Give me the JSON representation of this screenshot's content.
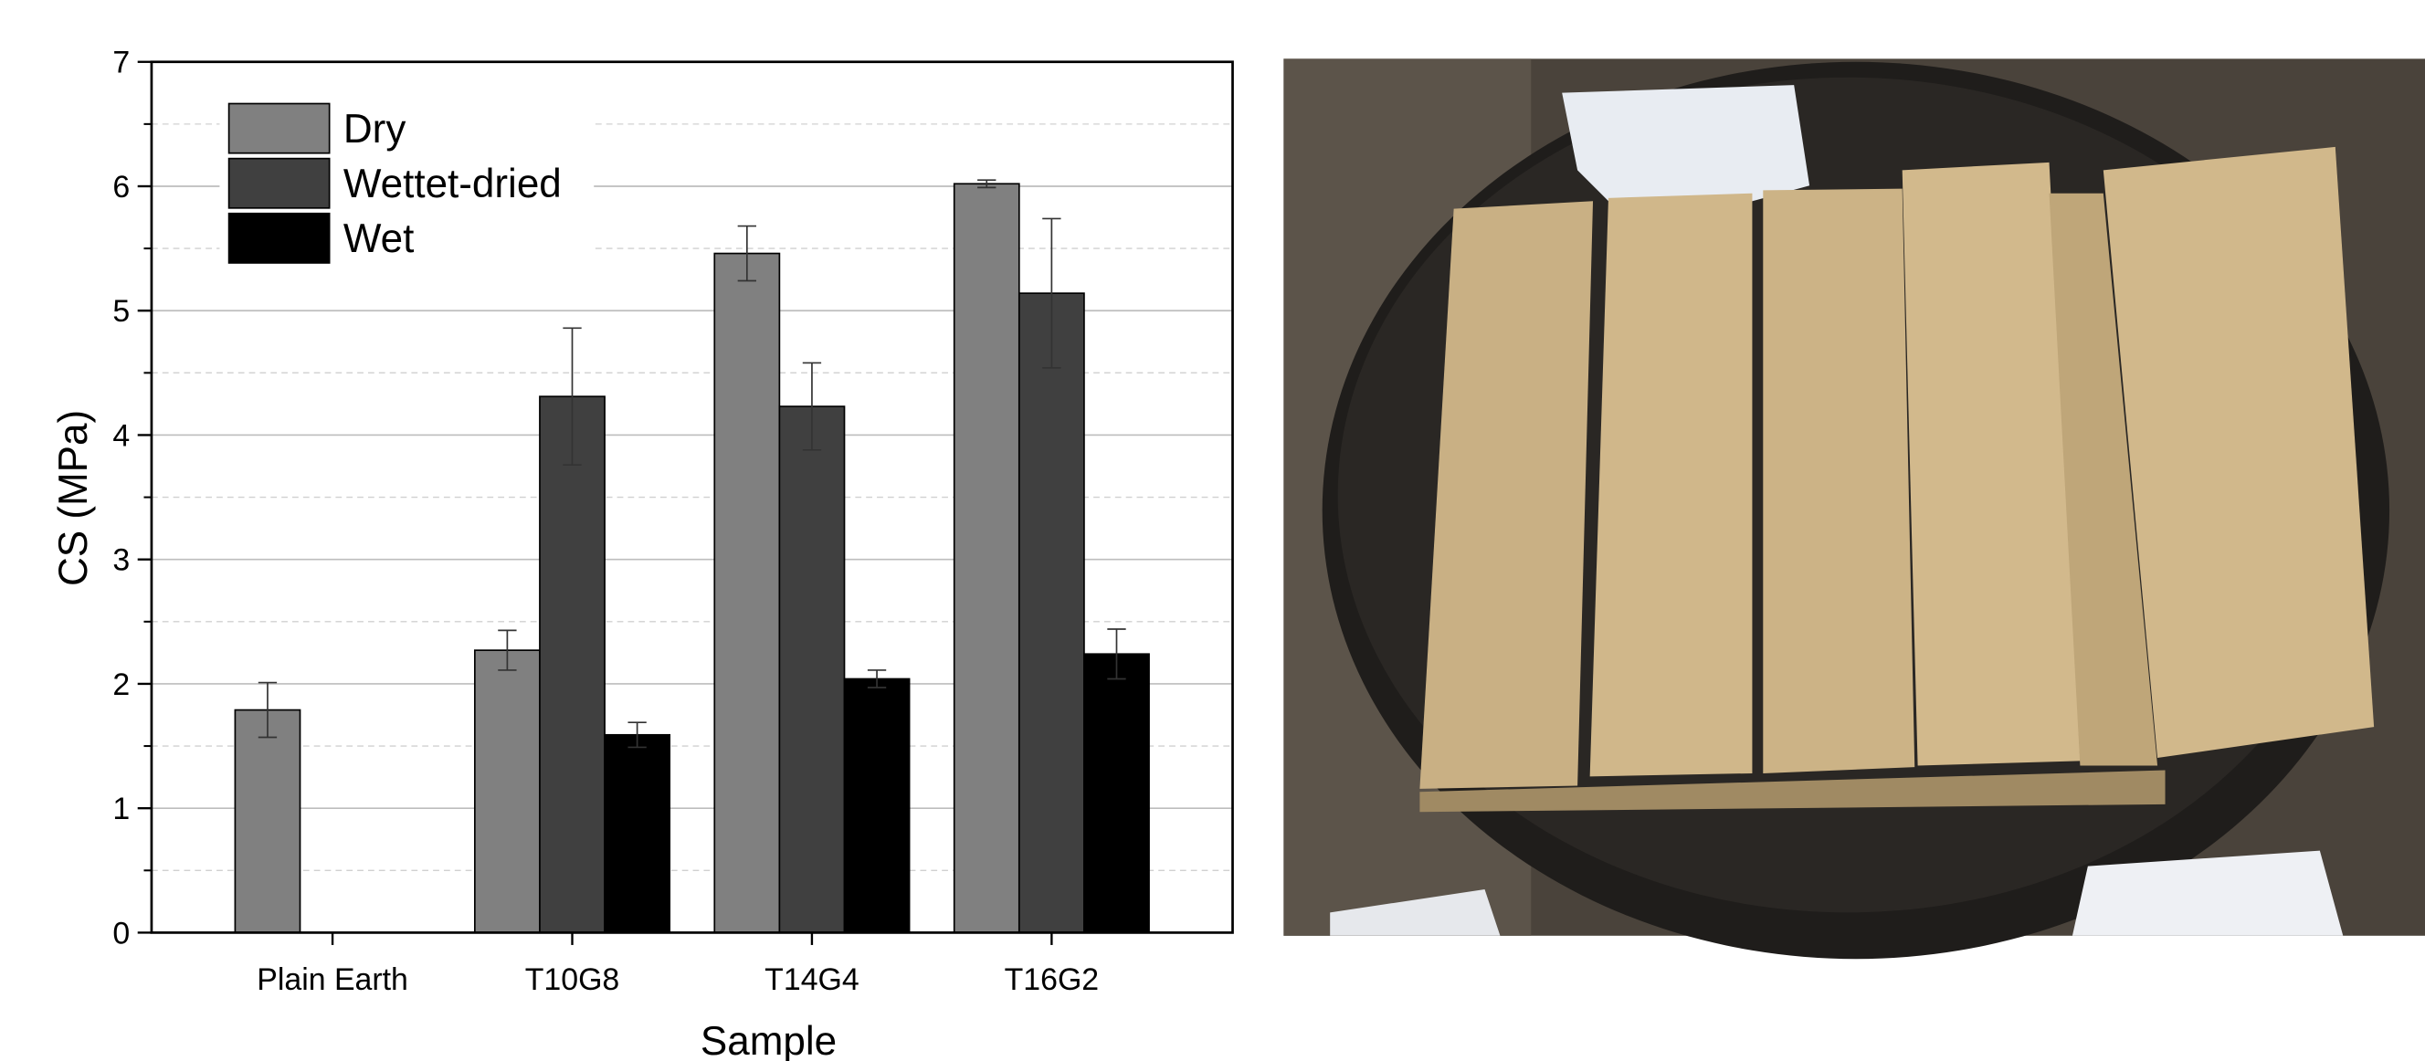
{
  "chart_data": {
    "type": "bar",
    "x_label": "Sample",
    "y_label": "CS (MPa)",
    "categories": [
      "Plain Earth",
      "T10G8",
      "T14G4",
      "T16G2"
    ],
    "series": [
      {
        "name": "Dry",
        "color": "#808080",
        "values": [
          1.79,
          2.27,
          5.46,
          6.02
        ],
        "errors": [
          0.22,
          0.16,
          0.22,
          0.03
        ]
      },
      {
        "name": "Wettet-dried",
        "color": "#404040",
        "values": [
          null,
          4.31,
          4.23,
          5.14
        ],
        "errors": [
          null,
          0.55,
          0.35,
          0.6
        ]
      },
      {
        "name": "Wet",
        "color": "#000000",
        "values": [
          null,
          1.59,
          2.04,
          2.24
        ],
        "errors": [
          null,
          0.1,
          0.07,
          0.2
        ]
      }
    ],
    "ylim": [
      0,
      7
    ],
    "yticks": [
      0,
      1,
      2,
      3,
      4,
      5,
      6,
      7
    ],
    "yminorticks": [
      0.5,
      1.5,
      2.5,
      3.5,
      4.5,
      5.5,
      6.5
    ],
    "grid": true,
    "legend": "upper left"
  }
}
